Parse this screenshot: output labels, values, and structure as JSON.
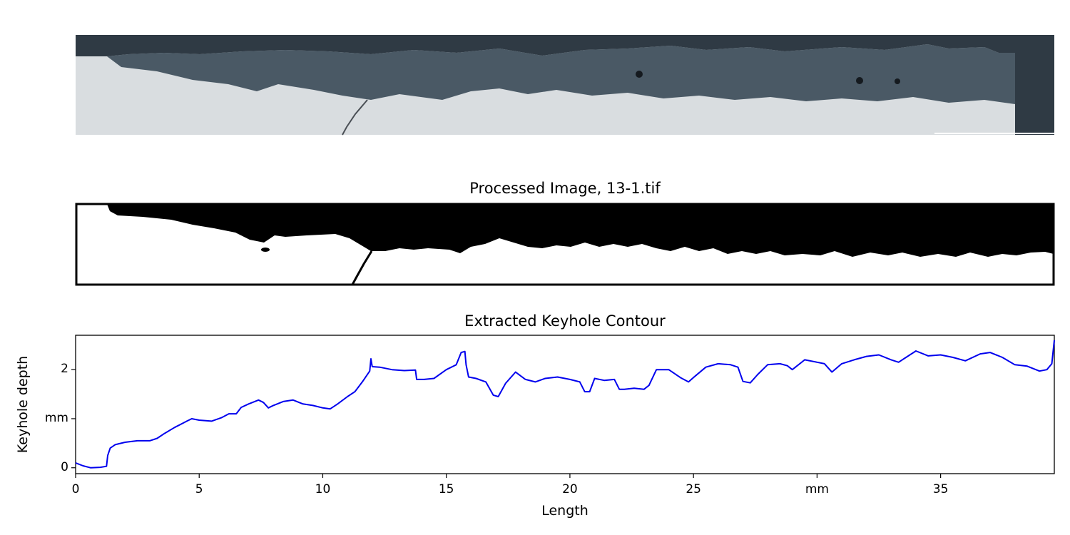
{
  "panels": {
    "raw_image": {
      "title": ""
    },
    "processed_image": {
      "title": "Processed Image, 13-1.tif"
    },
    "contour_plot": {
      "title": "Extracted Keyhole Contour"
    }
  },
  "colors": {
    "line": "#0000ee",
    "axes": "#000000",
    "photo_dark": "#2f3a44",
    "photo_light": "#d9dde0",
    "binary_dark": "#000000",
    "binary_light": "#ffffff"
  },
  "chart_data": {
    "type": "line",
    "title": "Extracted Keyhole Contour",
    "xlabel": "Length",
    "ylabel": "Keyhole depth",
    "xlim": [
      0,
      39.6
    ],
    "ylim": [
      -0.12,
      2.7
    ],
    "x_ticks": [
      {
        "value": 0,
        "label": "0"
      },
      {
        "value": 5,
        "label": "5"
      },
      {
        "value": 10,
        "label": "10"
      },
      {
        "value": 15,
        "label": "15"
      },
      {
        "value": 20,
        "label": "20"
      },
      {
        "value": 25,
        "label": "25"
      },
      {
        "value": 30,
        "label": "mm"
      },
      {
        "value": 35,
        "label": "35"
      }
    ],
    "y_ticks": [
      {
        "value": 0,
        "label": "0"
      },
      {
        "value": 1,
        "label": "mm"
      },
      {
        "value": 2,
        "label": "2"
      }
    ],
    "grid": false,
    "series": [
      {
        "x": [
          0,
          0.3,
          0.6,
          1.0,
          1.25,
          1.3,
          1.4,
          1.6,
          2.0,
          2.5,
          3.0,
          3.3,
          3.6,
          4.0,
          4.5,
          4.7,
          5.0,
          5.5,
          5.9,
          6.2,
          6.5,
          6.7,
          7.0,
          7.4,
          7.6,
          7.8,
          8.0,
          8.4,
          8.8,
          9.2,
          9.6,
          10.0,
          10.3,
          10.6,
          11.0,
          11.3,
          11.6,
          11.9,
          11.95,
          12.0,
          12.3,
          12.8,
          13.3,
          13.75,
          13.8,
          14.1,
          14.5,
          15.0,
          15.4,
          15.6,
          15.75,
          15.8,
          15.9,
          16.2,
          16.6,
          16.9,
          17.1,
          17.4,
          17.8,
          18.2,
          18.6,
          19.0,
          19.5,
          20.0,
          20.4,
          20.6,
          20.8,
          21.0,
          21.4,
          21.8,
          22.0,
          22.2,
          22.6,
          23.0,
          23.2,
          23.5,
          24.0,
          24.5,
          24.8,
          25.0,
          25.5,
          26.0,
          26.5,
          26.8,
          27.0,
          27.3,
          27.6,
          28.0,
          28.5,
          28.8,
          29.0,
          29.5,
          30.0,
          30.3,
          30.6,
          31.0,
          31.5,
          32.0,
          32.5,
          33.0,
          33.3,
          33.6,
          34.0,
          34.5,
          35.0,
          35.5,
          36.0,
          36.6,
          37.0,
          37.5,
          38.0,
          38.5,
          39.0,
          39.3,
          39.5,
          39.6
        ],
        "y": [
          0.1,
          0.04,
          0.0,
          0.01,
          0.03,
          0.25,
          0.4,
          0.47,
          0.52,
          0.55,
          0.55,
          0.6,
          0.7,
          0.82,
          0.95,
          1.0,
          0.97,
          0.95,
          1.02,
          1.1,
          1.1,
          1.23,
          1.3,
          1.38,
          1.33,
          1.22,
          1.27,
          1.35,
          1.38,
          1.3,
          1.27,
          1.22,
          1.2,
          1.3,
          1.45,
          1.55,
          1.75,
          1.97,
          2.22,
          2.06,
          2.05,
          2.0,
          1.98,
          1.99,
          1.8,
          1.8,
          1.82,
          2.0,
          2.1,
          2.35,
          2.37,
          2.1,
          1.85,
          1.82,
          1.75,
          1.48,
          1.45,
          1.72,
          1.95,
          1.8,
          1.75,
          1.82,
          1.85,
          1.8,
          1.75,
          1.55,
          1.55,
          1.82,
          1.78,
          1.8,
          1.6,
          1.6,
          1.62,
          1.6,
          1.68,
          2.0,
          2.0,
          1.83,
          1.75,
          1.84,
          2.05,
          2.12,
          2.1,
          2.05,
          1.76,
          1.73,
          1.9,
          2.1,
          2.12,
          2.08,
          2.0,
          2.2,
          2.15,
          2.12,
          1.95,
          2.12,
          2.2,
          2.27,
          2.3,
          2.2,
          2.15,
          2.25,
          2.38,
          2.28,
          2.3,
          2.25,
          2.18,
          2.32,
          2.35,
          2.25,
          2.1,
          2.07,
          1.97,
          2.0,
          2.12,
          2.6
        ]
      }
    ]
  }
}
